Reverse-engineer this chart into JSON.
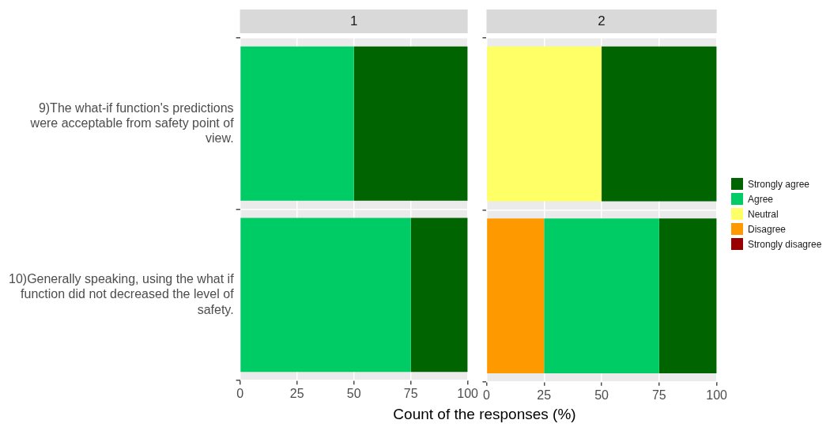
{
  "chart_data": [
    {
      "type": "bar",
      "title": "1",
      "orientation": "horizontal",
      "stacked": true,
      "xlabel": "Count of the responses (%)",
      "categories": [
        "9)The what-if function's predictions were acceptable from safety point of view.",
        "10)Generally speaking, using the what if function did not decreased the level of safety."
      ],
      "xlim": [
        0,
        100
      ],
      "xticks": [
        0,
        25,
        50,
        75,
        100
      ],
      "grid": true,
      "legend": false,
      "series": [
        {
          "color": "#990000",
          "values": [
            0,
            0
          ]
        },
        {
          "color": "#ff9900",
          "values": [
            0,
            0
          ]
        },
        {
          "color": "#ffff66",
          "values": [
            0,
            0
          ]
        },
        {
          "color": "#00cc66",
          "values": [
            50,
            75
          ]
        },
        {
          "color": "#006400",
          "values": [
            50,
            25
          ]
        }
      ]
    },
    {
      "type": "bar",
      "title": "2",
      "orientation": "horizontal",
      "stacked": true,
      "categories": [
        null,
        null
      ],
      "xlim": [
        0,
        100
      ],
      "xticks": [
        0,
        25,
        50,
        75,
        100
      ],
      "grid": true,
      "legend": "right",
      "tick_labels": "x",
      "series": [
        {
          "name": "Strongly disagree",
          "color": "#990000",
          "values": [
            0,
            0
          ]
        },
        {
          "name": "Disagree",
          "color": "#ff9900",
          "values": [
            0,
            25
          ]
        },
        {
          "name": "Neutral",
          "color": "#ffff66",
          "values": [
            50,
            0
          ]
        },
        {
          "name": "Agree",
          "color": "#00cc66",
          "values": [
            0,
            50
          ]
        },
        {
          "name": "Strongly agree",
          "color": "#006400",
          "values": [
            50,
            25
          ]
        }
      ]
    }
  ]
}
